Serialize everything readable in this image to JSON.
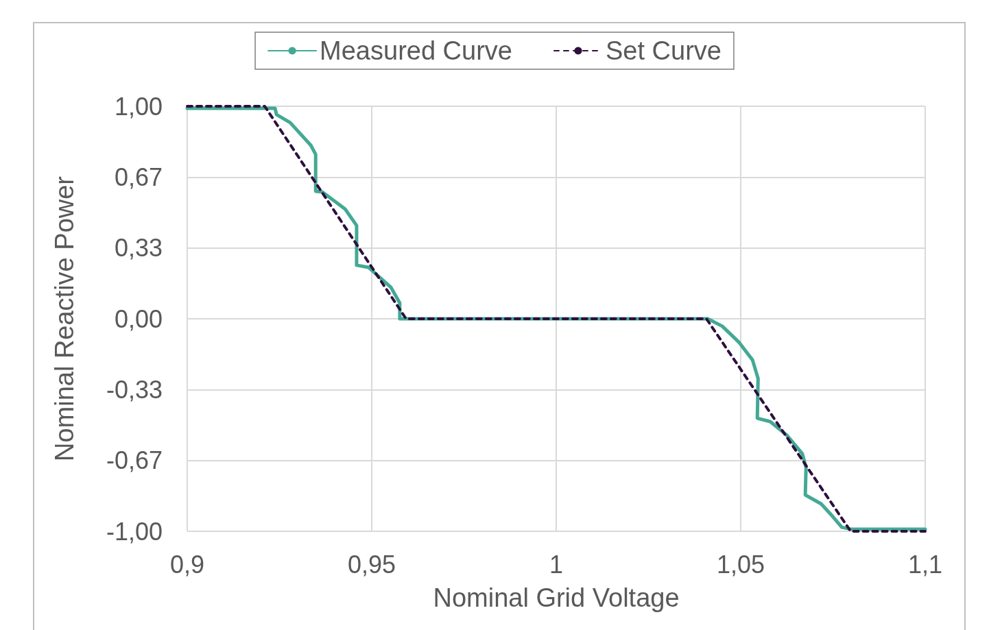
{
  "chart_data": {
    "type": "line",
    "xlabel": "Nominal Grid Voltage",
    "ylabel": "Nominal Reactive Power",
    "series": [
      {
        "name": "Measured Curve",
        "color": "#44a994",
        "line_style": "solid",
        "x": [
          0.9,
          0.9238,
          0.9242,
          0.9279,
          0.9335,
          0.9348,
          0.9348,
          0.9366,
          0.9428,
          0.9459,
          0.9459,
          0.9491,
          0.9552,
          0.9576,
          0.9576,
          1.0411,
          1.045,
          1.0495,
          1.0532,
          1.0547,
          1.0545,
          1.058,
          1.0625,
          1.0667,
          1.0677,
          1.0675,
          1.0718,
          1.0747,
          1.0774,
          1.0798,
          1.1
        ],
        "values": [
          0.99,
          0.99,
          0.961,
          0.923,
          0.816,
          0.774,
          0.6,
          0.597,
          0.516,
          0.439,
          0.252,
          0.242,
          0.148,
          0.074,
          0,
          0,
          -0.035,
          -0.11,
          -0.194,
          -0.281,
          -0.468,
          -0.484,
          -0.548,
          -0.635,
          -0.7,
          -0.829,
          -0.871,
          -0.926,
          -0.981,
          -0.99,
          -0.99
        ]
      },
      {
        "name": "Set Curve",
        "color": "#2e0f3e",
        "line_style": "dashed",
        "x": [
          0.9,
          0.921,
          0.9593,
          1.0407,
          1.0798,
          1.1
        ],
        "values": [
          1,
          1,
          0,
          0,
          -1,
          -1
        ]
      }
    ],
    "xlim": [
      0.9,
      1.1
    ],
    "xticks": [
      {
        "value": 0.9,
        "label": "0,9"
      },
      {
        "value": 0.95,
        "label": "0,95"
      },
      {
        "value": 1,
        "label": "1"
      },
      {
        "value": 1.05,
        "label": "1,05"
      },
      {
        "value": 1.1,
        "label": "1,1"
      }
    ],
    "ylim": [
      -1,
      1
    ],
    "yticks": [
      {
        "value": -1,
        "label": "-1,00"
      },
      {
        "value": -0.6667,
        "label": "-0,67"
      },
      {
        "value": -0.3333,
        "label": "-0,33"
      },
      {
        "value": 0,
        "label": "0,00"
      },
      {
        "value": 0.3333,
        "label": "0,33"
      },
      {
        "value": 0.6667,
        "label": "0,67"
      },
      {
        "value": 1,
        "label": "1,00"
      }
    ],
    "grid": true,
    "legend": "top",
    "marker": "none"
  }
}
